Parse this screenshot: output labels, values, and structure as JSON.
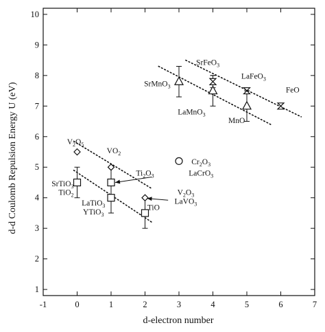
{
  "chart_data": {
    "type": "scatter",
    "xlabel": "d-electron number",
    "ylabel": "d-d Coulomb Repulsion Energy U (eV)",
    "xlim": [
      -1,
      7
    ],
    "ylim": [
      0.8,
      10.2
    ],
    "xticks": [
      -1,
      0,
      1,
      2,
      3,
      4,
      5,
      6,
      7
    ],
    "yticks": [
      1,
      2,
      3,
      4,
      5,
      6,
      7,
      8,
      9,
      10
    ],
    "grid": false,
    "points": [
      {
        "label": "V2O5",
        "marker": "diamond",
        "x": 0,
        "y": 5.5
      },
      {
        "label": "VO2",
        "marker": "diamond",
        "x": 1,
        "y": 5.0
      },
      {
        "label": "V2O3",
        "marker": "diamond",
        "x": 2,
        "y": 4.0
      },
      {
        "label": "SrTiO3",
        "marker": "square",
        "x": 0,
        "y": 4.5,
        "err": 0.5
      },
      {
        "label": "Ti2O3",
        "marker": "square",
        "x": 1,
        "y": 4.5,
        "err": 0.5
      },
      {
        "label": "LaTiO3",
        "marker": "square",
        "x": 1,
        "y": 4.0,
        "err": 0.5
      },
      {
        "label": "TiO",
        "marker": "square",
        "x": 2,
        "y": 3.5,
        "err": 0.5
      },
      {
        "label": "Cr2O3",
        "marker": "circle",
        "x": 3,
        "y": 5.2
      },
      {
        "label": "SrMnO3",
        "marker": "triangle",
        "x": 3,
        "y": 7.8,
        "err": 0.5
      },
      {
        "label": "LaMnO3",
        "marker": "triangle",
        "x": 4,
        "y": 7.5,
        "err": 0.5
      },
      {
        "label": "MnO",
        "marker": "triangle",
        "x": 5,
        "y": 7.0,
        "err": 0.5
      },
      {
        "label": "SrFeO3",
        "marker": "bowtie",
        "x": 4,
        "y": 7.8,
        "err": 0.2
      },
      {
        "label": "LaFeO3",
        "marker": "bowtie",
        "x": 5,
        "y": 7.5
      },
      {
        "label": "FeO",
        "marker": "bowtie",
        "x": 6,
        "y": 7.0
      }
    ],
    "trend_lines": [
      {
        "from": [
          -0.1,
          4.9
        ],
        "to": [
          2.2,
          3.2
        ]
      },
      {
        "from": [
          -0.1,
          5.85
        ],
        "to": [
          2.2,
          4.3
        ]
      },
      {
        "from": [
          2.4,
          8.3
        ],
        "to": [
          5.7,
          6.4
        ]
      },
      {
        "from": [
          3.2,
          8.5
        ],
        "to": [
          6.6,
          6.65
        ]
      }
    ],
    "annotations": [
      {
        "name": "label-v2o5",
        "parts": [
          [
            "V",
            ""
          ],
          [
            "2",
            "sub"
          ],
          [
            "O",
            ""
          ],
          [
            "5",
            "sub"
          ]
        ],
        "ax": -0.05,
        "ay": 5.75,
        "anchor": "middle"
      },
      {
        "name": "label-vo2",
        "parts": [
          [
            "VO",
            ""
          ],
          [
            "2",
            "sub"
          ]
        ],
        "ax": 1.08,
        "ay": 5.45,
        "anchor": "middle"
      },
      {
        "name": "label-srtio3",
        "parts": [
          [
            "SrTiO",
            ""
          ],
          [
            "3",
            "sub"
          ]
        ],
        "ax": -0.1,
        "ay": 4.38,
        "anchor": "end"
      },
      {
        "name": "label-tio2",
        "parts": [
          [
            "TiO",
            ""
          ],
          [
            "2",
            "sub"
          ]
        ],
        "ax": -0.1,
        "ay": 4.1,
        "anchor": "end"
      },
      {
        "name": "label-ti2o3",
        "parts": [
          [
            "Ti",
            ""
          ],
          [
            "2",
            "sub"
          ],
          [
            "O",
            ""
          ],
          [
            "3",
            "sub"
          ]
        ],
        "ax": 2.0,
        "ay": 4.72,
        "anchor": "middle"
      },
      {
        "name": "label-latio3",
        "parts": [
          [
            "LaTiO",
            ""
          ],
          [
            "3",
            "sub"
          ]
        ],
        "ax": 0.48,
        "ay": 3.75,
        "anchor": "middle"
      },
      {
        "name": "label-ytio3",
        "parts": [
          [
            "YTiO",
            ""
          ],
          [
            "3",
            "sub"
          ]
        ],
        "ax": 0.48,
        "ay": 3.45,
        "anchor": "middle"
      },
      {
        "name": "label-tio",
        "parts": [
          [
            "TiO",
            ""
          ]
        ],
        "ax": 2.25,
        "ay": 3.6,
        "anchor": "middle"
      },
      {
        "name": "label-cr2o3",
        "parts": [
          [
            "Cr",
            ""
          ],
          [
            "2",
            "sub"
          ],
          [
            "O",
            ""
          ],
          [
            "3",
            "sub"
          ]
        ],
        "ax": 3.65,
        "ay": 5.1,
        "anchor": "middle"
      },
      {
        "name": "label-lacro3",
        "parts": [
          [
            "LaCrO",
            ""
          ],
          [
            "3",
            "sub"
          ]
        ],
        "ax": 3.65,
        "ay": 4.72,
        "anchor": "middle"
      },
      {
        "name": "label-v2o3",
        "parts": [
          [
            "V",
            ""
          ],
          [
            "2",
            "sub"
          ],
          [
            "O",
            ""
          ],
          [
            "3",
            "sub"
          ]
        ],
        "ax": 3.2,
        "ay": 4.1,
        "anchor": "middle"
      },
      {
        "name": "label-lavo3",
        "parts": [
          [
            "LaVO",
            ""
          ],
          [
            "3",
            "sub"
          ]
        ],
        "ax": 3.2,
        "ay": 3.8,
        "anchor": "middle"
      },
      {
        "name": "label-srmno3",
        "parts": [
          [
            "SrMnO",
            ""
          ],
          [
            "3",
            "sub"
          ]
        ],
        "ax": 2.75,
        "ay": 7.65,
        "anchor": "end"
      },
      {
        "name": "label-lamno3",
        "parts": [
          [
            "LaMnO",
            ""
          ],
          [
            "3",
            "sub"
          ]
        ],
        "ax": 3.78,
        "ay": 6.72,
        "anchor": "end"
      },
      {
        "name": "label-srfeo3",
        "parts": [
          [
            "SrFeO",
            ""
          ],
          [
            "3",
            "sub"
          ]
        ],
        "ax": 3.85,
        "ay": 8.35,
        "anchor": "middle"
      },
      {
        "name": "label-lafeo3",
        "parts": [
          [
            "LaFeO",
            ""
          ],
          [
            "3",
            "sub"
          ]
        ],
        "ax": 5.2,
        "ay": 7.9,
        "anchor": "middle"
      },
      {
        "name": "label-mno",
        "parts": [
          [
            "MnO",
            ""
          ]
        ],
        "ax": 4.7,
        "ay": 6.45,
        "anchor": "middle"
      },
      {
        "name": "label-feo",
        "parts": [
          [
            "FeO",
            ""
          ]
        ],
        "ax": 6.35,
        "ay": 7.45,
        "anchor": "middle"
      }
    ],
    "arrows": [
      {
        "name": "arrow-ti2o3",
        "from": [
          2.2,
          4.68
        ],
        "to": [
          1.12,
          4.5
        ]
      },
      {
        "name": "arrow-lavo3",
        "from": [
          2.68,
          3.92
        ],
        "to": [
          2.06,
          3.98
        ]
      }
    ]
  }
}
